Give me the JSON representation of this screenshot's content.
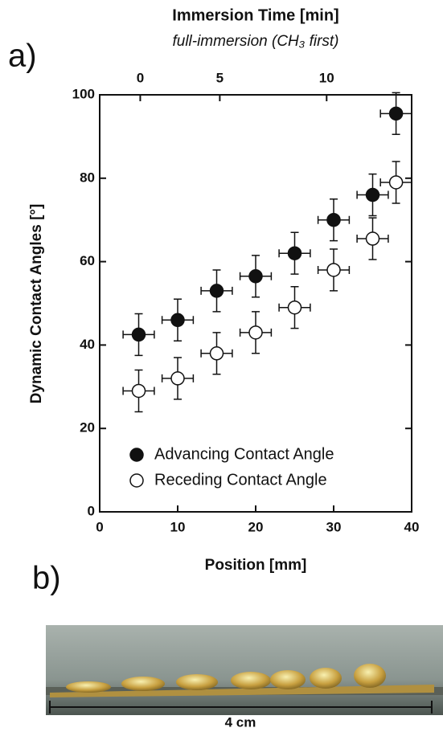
{
  "chart_data": {
    "type": "scatter",
    "panel_a": "a)",
    "panel_b": "b)",
    "title": "Immersion Time [min]",
    "subtitle": "full-immersion (CH₃ first)",
    "x_label": "Position [mm]",
    "y_label": "Dynamic Contact Angles [°]",
    "x": [
      5,
      10,
      15,
      20,
      25,
      30,
      35,
      38
    ],
    "series": [
      {
        "name": "Advancing Contact Angle",
        "color": "#111111",
        "filled": true,
        "values": [
          42.5,
          46,
          53,
          56.5,
          62,
          70,
          76,
          95.5
        ],
        "yerr": 5,
        "xerr": 2
      },
      {
        "name": "Receding Contact Angle",
        "color": "#111111",
        "filled": false,
        "values": [
          29,
          32,
          38,
          43,
          49,
          58,
          65.5,
          79
        ],
        "yerr": 5,
        "xerr": 2
      }
    ],
    "xlim": [
      0,
      40
    ],
    "xticks": [
      0,
      10,
      20,
      30,
      40
    ],
    "ylim": [
      0,
      100
    ],
    "yticks": [
      0,
      20,
      40,
      60,
      80,
      100
    ],
    "x2ticks": [
      {
        "value": 5.2,
        "label": "0"
      },
      {
        "value": 15.4,
        "label": "5"
      },
      {
        "value": 29.1,
        "label": "10"
      }
    ],
    "scale_label": "4 cm"
  }
}
